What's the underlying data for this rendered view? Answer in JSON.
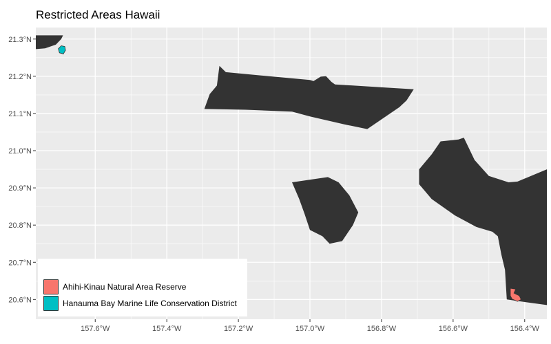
{
  "map": {
    "title": "Restricted Areas Hawaii",
    "background": "#ebebeb",
    "gridline_color": "#ffffff",
    "land_color": "#333333",
    "x_ticks": [
      {
        "value": -157.6,
        "label": "157.6°W"
      },
      {
        "value": -157.4,
        "label": "157.4°W"
      },
      {
        "value": -157.2,
        "label": "157.2°W"
      },
      {
        "value": -157.0,
        "label": "157.0°W"
      },
      {
        "value": -156.8,
        "label": "156.8°W"
      },
      {
        "value": -156.6,
        "label": "156.6°W"
      },
      {
        "value": -156.4,
        "label": "156.4°W"
      }
    ],
    "y_ticks": [
      {
        "value": 21.3,
        "label": "21.3°N"
      },
      {
        "value": 21.2,
        "label": "21.2°N"
      },
      {
        "value": 21.1,
        "label": "21.1°N"
      },
      {
        "value": 21.0,
        "label": "21.0°N"
      },
      {
        "value": 20.9,
        "label": "20.9°N"
      },
      {
        "value": 20.8,
        "label": "20.8°N"
      },
      {
        "value": 20.7,
        "label": "20.7°N"
      },
      {
        "value": 20.6,
        "label": "20.6°N"
      }
    ],
    "lon_range": [
      -157.766,
      -156.338
    ],
    "lat_range": [
      20.547,
      21.331
    ],
    "legend": {
      "entries": [
        {
          "label": "Ahihi-Kinau Natural Area Reserve",
          "color": "#f8766d"
        },
        {
          "label": "Hanauma Bay Marine Life Conservation District",
          "color": "#00bfc4"
        }
      ]
    },
    "land_polygons": [
      {
        "name": "oahu",
        "coords": [
          [
            -157.766,
            21.31
          ],
          [
            -157.69,
            21.31
          ],
          [
            -157.695,
            21.3
          ],
          [
            -157.71,
            21.285
          ],
          [
            -157.74,
            21.275
          ],
          [
            -157.766,
            21.273
          ]
        ]
      },
      {
        "name": "molokai",
        "coords": [
          [
            -157.295,
            21.112
          ],
          [
            -157.28,
            21.152
          ],
          [
            -157.26,
            21.175
          ],
          [
            -157.253,
            21.228
          ],
          [
            -157.235,
            21.211
          ],
          [
            -157.0,
            21.19
          ],
          [
            -156.99,
            21.187
          ],
          [
            -156.97,
            21.199
          ],
          [
            -156.955,
            21.2
          ],
          [
            -156.94,
            21.185
          ],
          [
            -156.93,
            21.178
          ],
          [
            -156.71,
            21.165
          ],
          [
            -156.73,
            21.135
          ],
          [
            -156.75,
            21.117
          ],
          [
            -156.84,
            21.058
          ],
          [
            -156.9,
            21.07
          ],
          [
            -157.0,
            21.092
          ],
          [
            -157.05,
            21.105
          ],
          [
            -157.18,
            21.11
          ]
        ]
      },
      {
        "name": "lanai",
        "coords": [
          [
            -157.05,
            20.915
          ],
          [
            -156.95,
            20.929
          ],
          [
            -156.92,
            20.915
          ],
          [
            -156.89,
            20.88
          ],
          [
            -156.865,
            20.834
          ],
          [
            -156.88,
            20.8
          ],
          [
            -156.91,
            20.757
          ],
          [
            -156.945,
            20.75
          ],
          [
            -156.965,
            20.77
          ],
          [
            -157.0,
            20.787
          ],
          [
            -157.015,
            20.83
          ],
          [
            -157.03,
            20.87
          ]
        ]
      },
      {
        "name": "maui",
        "coords": [
          [
            -156.338,
            20.95
          ],
          [
            -156.42,
            20.917
          ],
          [
            -156.445,
            20.915
          ],
          [
            -156.5,
            20.932
          ],
          [
            -156.54,
            20.975
          ],
          [
            -156.57,
            21.035
          ],
          [
            -156.585,
            21.03
          ],
          [
            -156.635,
            21.025
          ],
          [
            -156.66,
            20.99
          ],
          [
            -156.695,
            20.95
          ],
          [
            -156.695,
            20.91
          ],
          [
            -156.66,
            20.87
          ],
          [
            -156.595,
            20.826
          ],
          [
            -156.535,
            20.795
          ],
          [
            -156.49,
            20.782
          ],
          [
            -156.475,
            20.77
          ],
          [
            -156.465,
            20.72
          ],
          [
            -156.455,
            20.68
          ],
          [
            -156.45,
            20.6
          ],
          [
            -156.338,
            20.585
          ]
        ]
      }
    ],
    "restricted_polygons": [
      {
        "name": "hanauma-bay-area",
        "color": "#00bfc4",
        "coords": [
          [
            -157.695,
            21.282
          ],
          [
            -157.685,
            21.28
          ],
          [
            -157.683,
            21.27
          ],
          [
            -157.689,
            21.26
          ],
          [
            -157.7,
            21.263
          ],
          [
            -157.703,
            21.274
          ]
        ]
      },
      {
        "name": "ahihi-kinau-area",
        "color": "#f8766d",
        "coords": [
          [
            -156.44,
            20.63
          ],
          [
            -156.44,
            20.61
          ],
          [
            -156.435,
            20.601
          ],
          [
            -156.42,
            20.595
          ],
          [
            -156.41,
            20.6
          ],
          [
            -156.415,
            20.61
          ],
          [
            -156.43,
            20.617
          ],
          [
            -156.425,
            20.628
          ]
        ]
      }
    ]
  }
}
